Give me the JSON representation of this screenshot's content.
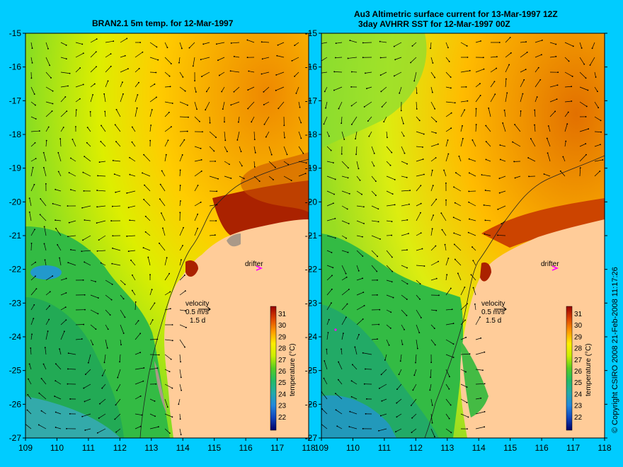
{
  "left_panel": {
    "title": "BRAN2.1 5m temp. for 12-Mar-1997"
  },
  "right_panel": {
    "title_line1": "Au3 Altimetric surface current for 13-Mar-1997 12Z",
    "title_line2": "3day AVHRR SST for 12-Mar-1997 00Z"
  },
  "axes": {
    "lat_labels": [
      "-15",
      "-16",
      "-17",
      "-18",
      "-19",
      "-20",
      "-21",
      "-22",
      "-23",
      "-24",
      "-25",
      "-26",
      "-27"
    ],
    "lon_labels": [
      "109",
      "110",
      "111",
      "112",
      "113",
      "114",
      "115",
      "116",
      "117",
      "118"
    ]
  },
  "legend": {
    "velocity_label": "velocity",
    "scale_label": "0.5 m/s",
    "duration_label": "1.5 d",
    "drifter_label": "drifter",
    "colorbar_title": "temperature (°C)",
    "colorbar_ticks": [
      "31",
      "30",
      "29",
      "28",
      "27",
      "26",
      "25",
      "24",
      "23",
      "22"
    ]
  },
  "copyright": "© Copyright CSIRO 2008    21-Feb-2008 11:17:26",
  "colors": {
    "background": "#00ccff",
    "land": "#ffcc99",
    "drifter_marker": "#ff00ff"
  }
}
